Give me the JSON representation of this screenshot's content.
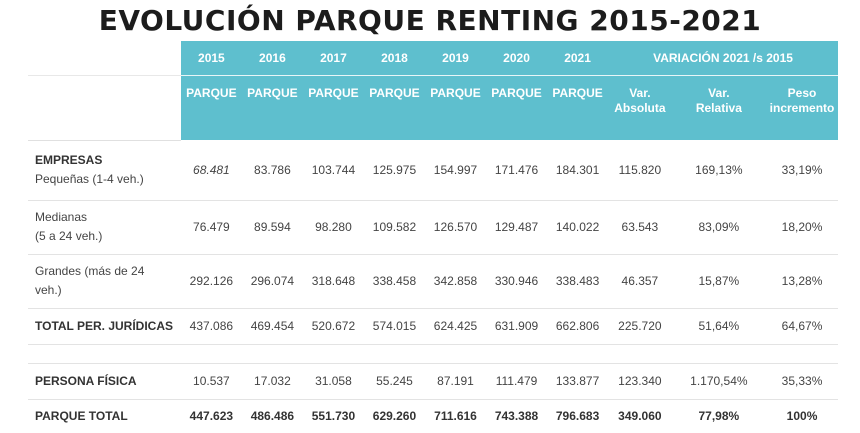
{
  "title": "EVOLUCIÓN PARQUE RENTING 2015-2021",
  "header": {
    "years": [
      "2015",
      "2016",
      "2017",
      "2018",
      "2019",
      "2020",
      "2021"
    ],
    "variacion_label": "VARIACIÓN 2021 /s 2015",
    "parque_label": "PARQUE",
    "var_absoluta": [
      "Var.",
      "Absoluta"
    ],
    "var_relativa": [
      "Var.",
      "Relativa"
    ],
    "peso_incremento": [
      "Peso",
      "incremento"
    ]
  },
  "rows": {
    "pequenas": {
      "label_bold": "EMPRESAS",
      "label": "Pequeñas (1-4 veh.)",
      "values": [
        "68.481",
        "83.786",
        "103.744",
        "125.975",
        "154.997",
        "171.476",
        "184.301"
      ],
      "var_abs": "115.820",
      "var_rel": "169,13%",
      "peso": "33,19%"
    },
    "medianas": {
      "label_line1": "Medianas",
      "label_line2": "(5 a 24 veh.)",
      "values": [
        "76.479",
        "89.594",
        "98.280",
        "109.582",
        "126.570",
        "129.487",
        "140.022"
      ],
      "var_abs": "63.543",
      "var_rel": "83,09%",
      "peso": "18,20%"
    },
    "grandes": {
      "label_line1": "Grandes (más de 24",
      "label_line2": "veh.)",
      "values": [
        "292.126",
        "296.074",
        "318.648",
        "338.458",
        "342.858",
        "330.946",
        "338.483"
      ],
      "var_abs": "46.357",
      "var_rel": "15,87%",
      "peso": "13,28%"
    },
    "total_juridicas": {
      "label": "TOTAL PER. JURÍDICAS",
      "values": [
        "437.086",
        "469.454",
        "520.672",
        "574.015",
        "624.425",
        "631.909",
        "662.806"
      ],
      "var_abs": "225.720",
      "var_rel": "51,64%",
      "peso": "64,67%"
    },
    "persona_fisica": {
      "label": "PERSONA FÍSICA",
      "values": [
        "10.537",
        "17.032",
        "31.058",
        "55.245",
        "87.191",
        "111.479",
        "133.877"
      ],
      "var_abs": "123.340",
      "var_rel": "1.170,54%",
      "peso": "35,33%"
    },
    "parque_total": {
      "label": "PARQUE TOTAL",
      "values": [
        "447.623",
        "486.486",
        "551.730",
        "629.260",
        "711.616",
        "743.388",
        "796.683"
      ],
      "var_abs": "349.060",
      "var_rel": "77,98%",
      "peso": "100%"
    }
  }
}
